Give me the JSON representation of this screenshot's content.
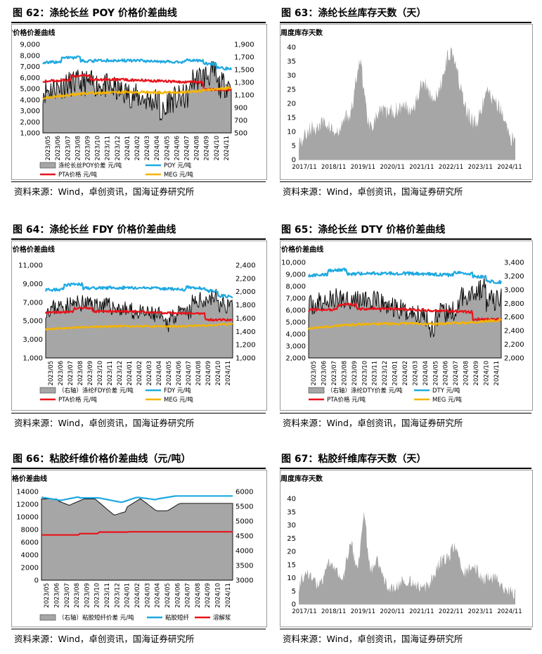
{
  "source": "资料来源：Wind，卓创资讯，国海证券研究所",
  "figures": [
    {
      "id": "62",
      "title": "图 62：涤纶长丝 POY 价格价差曲线",
      "chart_title": "涤纶长丝POY价格价差曲线",
      "type": "dual",
      "x_ticks": [
        "2023/05",
        "2023/06",
        "2023/07",
        "2023/08",
        "2023/09",
        "2023/10",
        "2023/11",
        "2023/12",
        "2024/01",
        "2024/02",
        "2024/03",
        "2024/04",
        "2024/05",
        "2024/06",
        "2024/07",
        "2024/08",
        "2024/09",
        "2024/10",
        "2024/11"
      ],
      "left_axis": {
        "min": 1000,
        "max": 9000,
        "step": 1000,
        "labels": [
          "1,000",
          "2,000",
          "3,000",
          "4,000",
          "5,000",
          "6,000",
          "7,000",
          "8,000",
          "9,000"
        ]
      },
      "right_axis": {
        "min": 500,
        "max": 1900,
        "step": 200,
        "labels": [
          "500",
          "700",
          "900",
          "1,100",
          "1,300",
          "1,500",
          "1,700",
          "1,900"
        ]
      },
      "legend": [
        "涤纶长丝POY价差  元/吨",
        "POY  元/吨",
        "PTA价格  元/吨",
        "MEG  元/吨"
      ],
      "colors": {
        "spread": "#a6a6a6",
        "product": "#1fa9e1",
        "pta": "#e8141b",
        "meg": "#f5b400"
      }
    },
    {
      "id": "63",
      "title": "图 63：涤纶长丝库存天数（天）",
      "chart_title": "涤纶长丝中国周度库存天数",
      "type": "area",
      "x_ticks": [
        "2017/11",
        "2018/11",
        "2019/11",
        "2020/11",
        "2021/11",
        "2022/11",
        "2023/11",
        "2024/11"
      ],
      "left_axis": {
        "min": 0,
        "max": 40,
        "step": 5,
        "labels": [
          "0",
          "5",
          "10",
          "15",
          "20",
          "25",
          "30",
          "35",
          "40"
        ]
      },
      "colors": {
        "area": "#a6a6a6"
      }
    },
    {
      "id": "64",
      "title": "图 64：涤纶长丝 FDY 价格价差曲线",
      "chart_title": "涤纶长丝FDY价格价差曲线",
      "type": "dual",
      "x_ticks": [
        "2023/05",
        "2023/06",
        "2023/07",
        "2023/08",
        "2023/09",
        "2023/10",
        "2023/11",
        "2023/12",
        "2024/01",
        "2024/02",
        "2024/03",
        "2024/04",
        "2024/05",
        "2024/06",
        "2024/07",
        "2024/08",
        "2024/09",
        "2024/10",
        "2024/11"
      ],
      "left_axis": {
        "min": 1000,
        "max": 11000,
        "step": 2000,
        "labels": [
          "1,000",
          "3,000",
          "5,000",
          "7,000",
          "9,000",
          "11,000"
        ]
      },
      "right_axis": {
        "min": 1000,
        "max": 2400,
        "step": 200,
        "labels": [
          "1,000",
          "1,200",
          "1,400",
          "1,600",
          "1,800",
          "2,000",
          "2,200",
          "2,400"
        ]
      },
      "legend": [
        "（右轴）涤纶FDY价差  元/吨",
        "FDY  元/吨",
        "PTA价格  元/吨",
        "MEG  元/吨"
      ],
      "colors": {
        "spread": "#a6a6a6",
        "product": "#1fa9e1",
        "pta": "#e8141b",
        "meg": "#f5b400"
      }
    },
    {
      "id": "65",
      "title": "图 65：涤纶长丝 DTY 价格价差曲线",
      "chart_title": "涤纶长丝DTY价格价差曲线",
      "type": "dual",
      "x_ticks": [
        "2023/05",
        "2023/06",
        "2023/07",
        "2023/08",
        "2023/09",
        "2023/10",
        "2023/11",
        "2023/12",
        "2024/01",
        "2024/02",
        "2024/03",
        "2024/04",
        "2024/05",
        "2024/06",
        "2024/07",
        "2024/08",
        "2024/09",
        "2024/10",
        "2024/11"
      ],
      "left_axis": {
        "min": 2000,
        "max": 10000,
        "step": 1000,
        "labels": [
          "2,000",
          "3,000",
          "4,000",
          "5,000",
          "6,000",
          "7,000",
          "8,000",
          "9,000",
          "10,000"
        ]
      },
      "right_axis": {
        "min": 2000,
        "max": 3400,
        "step": 200,
        "labels": [
          "2,000",
          "2,200",
          "2,400",
          "2,600",
          "2,800",
          "3,000",
          "3,200",
          "3,400"
        ]
      },
      "legend": [
        "（右轴）涤纶DTY价差  元/吨",
        "DTY  元/吨",
        "PTA价格  元/吨",
        "MEG  元/吨"
      ],
      "colors": {
        "spread": "#a6a6a6",
        "product": "#1fa9e1",
        "pta": "#e8141b",
        "meg": "#f5b400"
      }
    },
    {
      "id": "66",
      "title": "图 66：粘胶纤维价格价差曲线（元/吨）",
      "chart_title": "粘胶短纤价格价差曲线",
      "type": "viscose",
      "x_ticks": [
        "2023/05",
        "2023/06",
        "2023/07",
        "2023/08",
        "2023/09",
        "2023/10",
        "2023/11",
        "2023/12",
        "2024/01",
        "2024/02",
        "2024/03",
        "2024/04",
        "2024/05",
        "2024/06",
        "2024/07",
        "2024/08",
        "2024/09",
        "2024/10",
        "2024/11"
      ],
      "left_axis": {
        "min": 0,
        "max": 14000,
        "step": 2000,
        "labels": [
          "0",
          "2000",
          "4000",
          "6000",
          "8000",
          "10000",
          "12000",
          "14000"
        ]
      },
      "right_axis": {
        "min": 3000,
        "max": 6000,
        "step": 500,
        "labels": [
          "3000",
          "3500",
          "4000",
          "4500",
          "5000",
          "5500",
          "6000"
        ]
      },
      "legend": [
        "（右轴）粘胶短纤价差  元/吨",
        "粘胶短纤",
        "溶解浆"
      ],
      "colors": {
        "spread": "#a6a6a6",
        "product": "#1fa9e1",
        "pulp": "#e8141b"
      }
    },
    {
      "id": "67",
      "title": "图 67：粘胶纤维库存天数（天）",
      "chart_title": "粘胶短纤中国周度库存天数",
      "type": "area",
      "x_ticks": [
        "2017/11",
        "2018/11",
        "2019/11",
        "2020/11",
        "2021/11",
        "2022/11",
        "2023/11",
        "2024/11"
      ],
      "left_axis": {
        "min": 0,
        "max": 40,
        "step": 5,
        "labels": [
          "0",
          "5",
          "10",
          "15",
          "20",
          "25",
          "30",
          "35",
          "40"
        ]
      },
      "colors": {
        "area": "#a6a6a6"
      }
    }
  ]
}
